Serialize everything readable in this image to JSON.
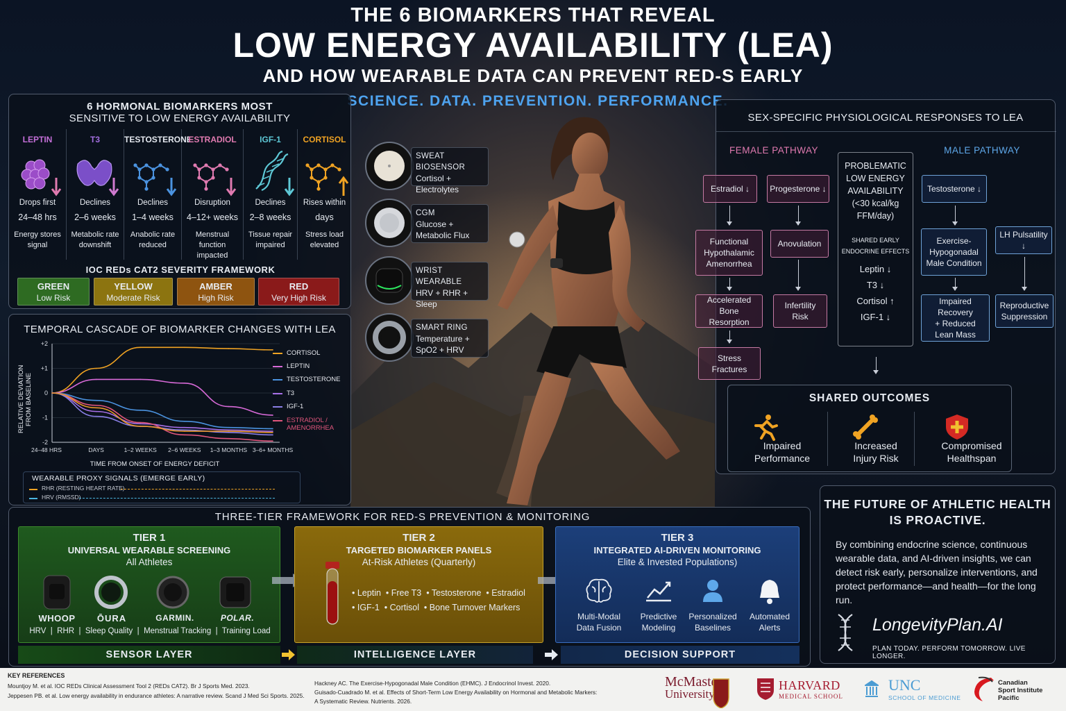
{
  "header": {
    "line1": "THE 6 BIOMARKERS THAT REVEAL",
    "line2": "LOW ENERGY AVAILABILITY (LEA)",
    "line3": "AND HOW WEARABLE DATA CAN PREVENT RED-S EARLY",
    "tagline": "SCIENCE. DATA. PREVENTION. PERFORMANCE."
  },
  "hormones": {
    "title1": "6 HORMONAL BIOMARKERS MOST",
    "title2": "SENSITIVE TO LOW ENERGY AVAILABILITY",
    "items": [
      {
        "name": "LEPTIN",
        "color": "#c46fd8",
        "l1": "Drops first",
        "l2": "24–48 hrs",
        "l3": "Energy stores",
        "l4": "signal",
        "icon": "fat-cells-icon",
        "dir": "down"
      },
      {
        "name": "T3",
        "color": "#a36fe0",
        "l1": "Declines",
        "l2": "2–6 weeks",
        "l3": "Metabolic rate",
        "l4": "downshift",
        "icon": "thyroid-icon",
        "dir": "down"
      },
      {
        "name": "TESTOSTERONE",
        "color": "#e4e8ef",
        "l1": "Declines",
        "l2": "1–4 weeks",
        "l3": "Anabolic rate",
        "l4": "reduced",
        "icon": "molecule-icon",
        "dir": "down"
      },
      {
        "name": "ESTRADIOL",
        "color": "#e07ab0",
        "l1": "Disruption",
        "l2": "4–12+ weeks",
        "l3": "Menstrual function",
        "l4": "impacted",
        "icon": "molecule-icon",
        "dir": "down"
      },
      {
        "name": "IGF-1",
        "color": "#5ec8d6",
        "l1": "Declines",
        "l2": "2–8 weeks",
        "l3": "Tissue repair",
        "l4": "impaired",
        "icon": "dna-icon",
        "dir": "down"
      },
      {
        "name": "CORTISOL",
        "color": "#f0a323",
        "l1": "Rises within",
        "l2": "days",
        "l3": "Stress load",
        "l4": "elevated",
        "icon": "molecule-icon",
        "dir": "up"
      }
    ],
    "framework_title": "IOC REDs CAT2 SEVERITY FRAMEWORK",
    "severity": [
      {
        "name": "GREEN",
        "risk": "Low Risk",
        "color": "#2e6b22"
      },
      {
        "name": "YELLOW",
        "risk": "Moderate Risk",
        "color": "#8c7410"
      },
      {
        "name": "AMBER",
        "risk": "High Risk",
        "color": "#8e5410"
      },
      {
        "name": "RED",
        "risk": "Very High Risk",
        "color": "#8a1a1a"
      }
    ]
  },
  "chart_data": {
    "type": "line",
    "title": "TEMPORAL CASCADE OF BIOMARKER CHANGES WITH LEA",
    "xlabel": "TIME FROM ONSET OF ENERGY DEFICIT",
    "ylabel": "RELATIVE DEVIATION FROM BASELINE",
    "categories": [
      "24–48 HRS",
      "DAYS",
      "1–2 WEEKS",
      "2–6 WEEKS",
      "1–3 MONTHS",
      "3–6+ MONTHS"
    ],
    "yticks": [
      "+2",
      "+1",
      "0",
      "-1",
      "-2"
    ],
    "ylim": [
      -2,
      2
    ],
    "series": [
      {
        "name": "CORTISOL",
        "color": "#f0a323",
        "values": [
          0,
          1.0,
          1.85,
          1.85,
          1.8,
          1.75
        ]
      },
      {
        "name": "LEPTIN",
        "color": "#d86ad8",
        "values": [
          0,
          0.55,
          0.55,
          0.4,
          -0.55,
          -0.9
        ]
      },
      {
        "name": "TESTOSTERONE",
        "color": "#4b93e0",
        "values": [
          0,
          -0.3,
          -0.7,
          -1.15,
          -1.4,
          -1.45
        ]
      },
      {
        "name": "T3",
        "color": "#a870e8",
        "values": [
          0,
          -0.75,
          -1.25,
          -1.4,
          -1.5,
          -1.55
        ]
      },
      {
        "name": "IGF-1",
        "color": "#8a7fe6",
        "values": [
          0,
          -0.95,
          -1.35,
          -1.5,
          -1.6,
          -1.7
        ]
      },
      {
        "name": "ESTRADIOL / AMENORRHEA",
        "color": "#e0567c",
        "values": [
          0,
          -0.5,
          -1.2,
          -1.7,
          -1.85,
          -1.95
        ]
      },
      {
        "name": "ESTRADIOL / AMENORRHEA orange-tail",
        "color": "#e8962a",
        "values": [
          0,
          -0.6,
          -1.35,
          -1.55,
          -1.55,
          -1.6
        ]
      }
    ],
    "legend": [
      {
        "name": "CORTISOL",
        "color": "#f0a323"
      },
      {
        "name": "LEPTIN",
        "color": "#d86ad8"
      },
      {
        "name": "TESTOSTERONE",
        "color": "#4b93e0"
      },
      {
        "name": "T3",
        "color": "#a870e8"
      },
      {
        "name": "IGF-1",
        "color": "#8a7fe6"
      },
      {
        "name": "ESTRADIOL /",
        "name2": "AMENORRHEA",
        "color": "#e0567c"
      }
    ],
    "proxy_title": "WEARABLE PROXY SIGNALS (EMERGE EARLY)",
    "proxy": [
      {
        "name": "RHR (RESTING HEART RATE)",
        "color": "#f0a323"
      },
      {
        "name": "HRV (RMSSD)",
        "color": "#4bb6e0"
      }
    ]
  },
  "wearables": [
    {
      "l1": "SWEAT BIOSENSOR",
      "l2": "Cortisol +",
      "l3": "Electrolytes",
      "icon": "sweat-patch-icon"
    },
    {
      "l1": "CGM",
      "l2": "Glucose +",
      "l3": "Metabolic Flux",
      "icon": "cgm-sensor-icon"
    },
    {
      "l1": "WRIST WEARABLE",
      "l2": "HRV + RHR +",
      "l3": "Sleep",
      "icon": "wrist-band-icon"
    },
    {
      "l1": "SMART RING",
      "l2": "Temperature +",
      "l3": "SpO2 + HRV",
      "icon": "smart-ring-icon"
    }
  ],
  "sex": {
    "title": "SEX-SPECIFIC PHYSIOLOGICAL RESPONSES TO LEA",
    "female_title": "FEMALE PATHWAY",
    "male_title": "MALE PATHWAY",
    "center": {
      "l1": "PROBLEMATIC",
      "l2": "LOW ENERGY",
      "l3": "AVAILABILITY",
      "l4": "(<30 kcal/kg",
      "l5": "FFM/day)",
      "shared": "SHARED EARLY",
      "shared2": "ENDOCRINE EFFECTS",
      "e1": "Leptin ↓",
      "e2": "T3 ↓",
      "e3": "Cortisol ↑",
      "e4": "IGF-1 ↓"
    },
    "f": {
      "estradiol": "Estradiol ↓",
      "progesterone": "Progesterone ↓",
      "fha1": "Functional",
      "fha2": "Hypothalamic",
      "fha3": "Amenorrhea",
      "anov": "Anovulation",
      "abr1": "Accelerated",
      "abr2": "Bone Resorption",
      "inf1": "Infertility",
      "inf2": "Risk",
      "sf1": "Stress",
      "sf2": "Fractures"
    },
    "m": {
      "testo": "Testosterone ↓",
      "ehmc1": "Exercise-",
      "ehmc2": "Hypogonadal",
      "ehmc3": "Male Condition",
      "lh": "LH Pulsatility ↓",
      "ir1": "Impaired Recovery",
      "ir2": "+ Reduced",
      "ir3": "Lean Mass",
      "rs1": "Reproductive",
      "rs2": "Suppression"
    },
    "outcomes_title": "SHARED OUTCOMES",
    "outcomes": [
      {
        "l1": "Impaired",
        "l2": "Performance",
        "icon": "runner-icon"
      },
      {
        "l1": "Increased",
        "l2": "Injury Risk",
        "icon": "bone-icon"
      },
      {
        "l1": "Compromised",
        "l2": "Healthspan",
        "icon": "shield-cross-icon"
      }
    ]
  },
  "tiers": {
    "title": "THREE-TIER FRAMEWORK FOR RED-S PREVENTION & MONITORING",
    "t1": {
      "h1": "TIER 1",
      "h2": "UNIVERSAL WEARABLE SCREENING",
      "h3": "All Athletes",
      "brands": [
        "WHOOP",
        "ŌURA",
        "GARMIN.",
        "POLAR."
      ],
      "metrics": [
        "HRV",
        "RHR",
        "Sleep Quality",
        "Menstrual Tracking",
        "Training Load"
      ]
    },
    "t2": {
      "h1": "TIER 2",
      "h2": "TARGETED BIOMARKER PANELS",
      "h3": "At-Risk Athletes (Quarterly)",
      "row1": [
        "Leptin",
        "Free T3",
        "Testosterone",
        "Estradiol"
      ],
      "row2": [
        "IGF-1",
        "Cortisol",
        "Bone Turnover Markers"
      ]
    },
    "t3": {
      "h1": "TIER 3",
      "h2": "INTEGRATED AI-DRIVEN MONITORING",
      "h3": "Elite & Invested Populations)",
      "items": [
        {
          "l1": "Multi-Modal",
          "l2": "Data Fusion",
          "icon": "brain-icon"
        },
        {
          "l1": "Predictive",
          "l2": "Modeling",
          "icon": "trend-chart-icon"
        },
        {
          "l1": "Personalized",
          "l2": "Baselines",
          "icon": "person-icon"
        },
        {
          "l1": "Automated",
          "l2": "Alerts",
          "icon": "bell-icon"
        }
      ]
    },
    "layers": [
      "SENSOR LAYER",
      "INTELLIGENCE LAYER",
      "DECISION SUPPORT"
    ]
  },
  "future": {
    "h1": "THE FUTURE OF ATHLETIC HEALTH",
    "h2": "IS PROACTIVE.",
    "body": "By combining endocrine science, continuous wearable data, and AI-driven insights, we can detect risk early, personalize interventions, and protect performance—and health—for the long run.",
    "brand": "LongevityPlan.AI",
    "slogan": "PLAN TODAY. PERFORM TOMORROW. LIVE LONGER."
  },
  "refs": {
    "title": "KEY REFERENCES",
    "r1": "Mountjoy M. et al. IOC REDs Clinical Assessment Tool 2 (REDs CAT2). Br J Sports Med. 2023.",
    "r2": "Jeppesen PB. et al. Low energy availability in endurance athletes: A narrative review. Scand J Med Sci Sports. 2025.",
    "r3": "Hackney AC. The Exercise-Hypogonadal Male Condition (EHMC). J Endocrinol Invest. 2020.",
    "r4": "Guisado-Cuadrado M. et al. Effects of Short-Term Low Energy Availability on Hormonal and Metabolic Markers:",
    "r5": "A Systematic Review. Nutrients. 2026.",
    "logos": {
      "mcm1": "McMaster",
      "mcm2": "University",
      "harv1": "HARVARD",
      "harv2": "MEDICAL SCHOOL",
      "unc1": "UNC",
      "unc2": "SCHOOL OF MEDICINE",
      "csi1": "Canadian",
      "csi2": "Sport Institute",
      "csi3": "Pacific"
    }
  }
}
